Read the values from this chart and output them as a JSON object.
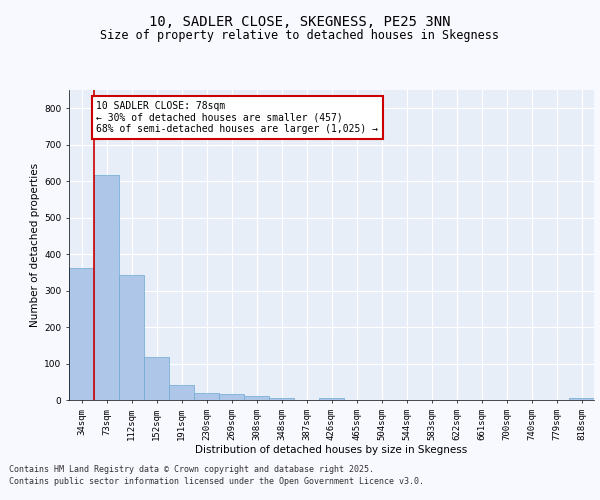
{
  "title": "10, SADLER CLOSE, SKEGNESS, PE25 3NN",
  "subtitle": "Size of property relative to detached houses in Skegness",
  "xlabel": "Distribution of detached houses by size in Skegness",
  "ylabel": "Number of detached properties",
  "categories": [
    "34sqm",
    "73sqm",
    "112sqm",
    "152sqm",
    "191sqm",
    "230sqm",
    "269sqm",
    "308sqm",
    "348sqm",
    "387sqm",
    "426sqm",
    "465sqm",
    "504sqm",
    "544sqm",
    "583sqm",
    "622sqm",
    "661sqm",
    "700sqm",
    "740sqm",
    "779sqm",
    "818sqm"
  ],
  "values": [
    362,
    617,
    344,
    118,
    42,
    20,
    16,
    12,
    5,
    0,
    5,
    0,
    0,
    0,
    0,
    0,
    0,
    0,
    0,
    0,
    5
  ],
  "bar_color": "#aec6e8",
  "bar_edge_color": "#6aaad4",
  "property_line_color": "#cc0000",
  "property_line_x": 0.5,
  "annotation_text": "10 SADLER CLOSE: 78sqm\n← 30% of detached houses are smaller (457)\n68% of semi-detached houses are larger (1,025) →",
  "annotation_box_color": "#cc0000",
  "ylim": [
    0,
    850
  ],
  "yticks": [
    0,
    100,
    200,
    300,
    400,
    500,
    600,
    700,
    800
  ],
  "background_color": "#e8eef8",
  "grid_color": "#ffffff",
  "footer_line1": "Contains HM Land Registry data © Crown copyright and database right 2025.",
  "footer_line2": "Contains public sector information licensed under the Open Government Licence v3.0.",
  "title_fontsize": 10,
  "subtitle_fontsize": 8.5,
  "axis_label_fontsize": 7.5,
  "tick_fontsize": 6.5,
  "annotation_fontsize": 7,
  "footer_fontsize": 6
}
